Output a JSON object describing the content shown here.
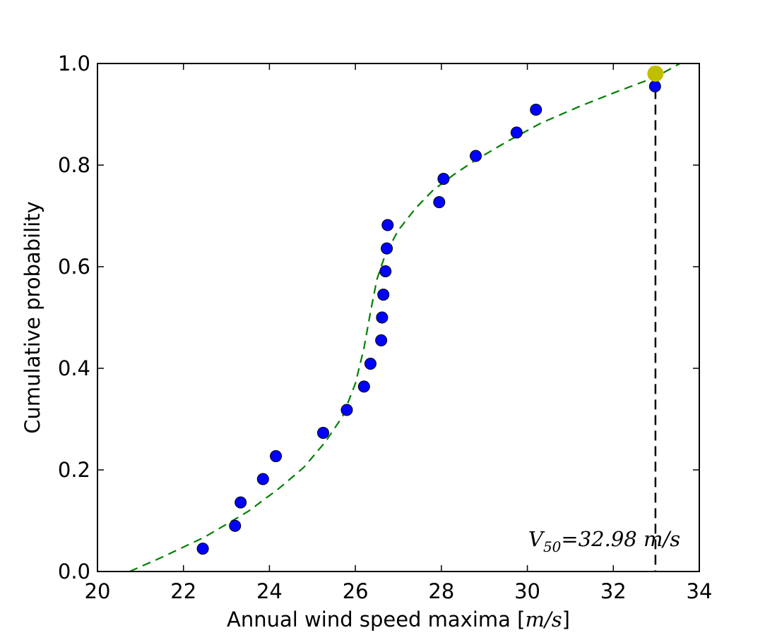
{
  "chart_data": {
    "type": "scatter",
    "xlabel_text": "Annual wind speed maxima",
    "xlabel_unit": "m/s",
    "ylabel": "Cumulative probability",
    "xlim": [
      20,
      34
    ],
    "ylim": [
      0.0,
      1.0
    ],
    "x_ticks": [
      20,
      22,
      24,
      26,
      28,
      30,
      32,
      34
    ],
    "x_tick_labels": [
      "20",
      "22",
      "24",
      "26",
      "28",
      "30",
      "32",
      "34"
    ],
    "y_ticks": [
      0.0,
      0.2,
      0.4,
      0.6,
      0.8,
      1.0
    ],
    "y_tick_labels": [
      "0.0",
      "0.2",
      "0.4",
      "0.6",
      "0.8",
      "1.0"
    ],
    "grid": false,
    "series": [
      {
        "style": "markers",
        "color": "#0000ff",
        "points": [
          [
            22.45,
            0.045
          ],
          [
            23.2,
            0.09
          ],
          [
            23.33,
            0.136
          ],
          [
            23.85,
            0.182
          ],
          [
            24.15,
            0.227
          ],
          [
            25.25,
            0.273
          ],
          [
            25.8,
            0.318
          ],
          [
            26.2,
            0.364
          ],
          [
            26.35,
            0.409
          ],
          [
            26.6,
            0.455
          ],
          [
            26.62,
            0.5
          ],
          [
            26.65,
            0.545
          ],
          [
            26.7,
            0.591
          ],
          [
            26.73,
            0.636
          ],
          [
            26.75,
            0.682
          ],
          [
            27.95,
            0.727
          ],
          [
            28.05,
            0.773
          ],
          [
            28.8,
            0.818
          ],
          [
            29.75,
            0.864
          ],
          [
            30.2,
            0.909
          ],
          [
            32.97,
            0.955
          ]
        ]
      },
      {
        "style": "dashed-line",
        "color": "#008000",
        "points": [
          [
            20.75,
            0.0
          ],
          [
            21.5,
            0.028
          ],
          [
            22.5,
            0.068
          ],
          [
            23.5,
            0.118
          ],
          [
            24.2,
            0.162
          ],
          [
            24.8,
            0.205
          ],
          [
            25.3,
            0.255
          ],
          [
            25.7,
            0.305
          ],
          [
            26.0,
            0.37
          ],
          [
            26.2,
            0.44
          ],
          [
            26.35,
            0.51
          ],
          [
            26.5,
            0.575
          ],
          [
            26.7,
            0.625
          ],
          [
            27.0,
            0.672
          ],
          [
            27.4,
            0.715
          ],
          [
            27.8,
            0.75
          ],
          [
            28.3,
            0.782
          ],
          [
            28.8,
            0.81
          ],
          [
            29.5,
            0.845
          ],
          [
            30.3,
            0.882
          ],
          [
            31.2,
            0.915
          ],
          [
            32.0,
            0.942
          ],
          [
            32.98,
            0.973
          ],
          [
            33.55,
            1.0
          ]
        ]
      },
      {
        "style": "highlight-marker",
        "color": "#bfbf00",
        "points": [
          [
            32.98,
            0.98
          ]
        ]
      }
    ],
    "vline": {
      "x": 32.98,
      "color": "#000000",
      "style": "dashed"
    },
    "annotation": {
      "symbol": "V",
      "subscript": "50",
      "text": "=32.98 m/s",
      "x": 33.0,
      "y": 0.05
    }
  }
}
